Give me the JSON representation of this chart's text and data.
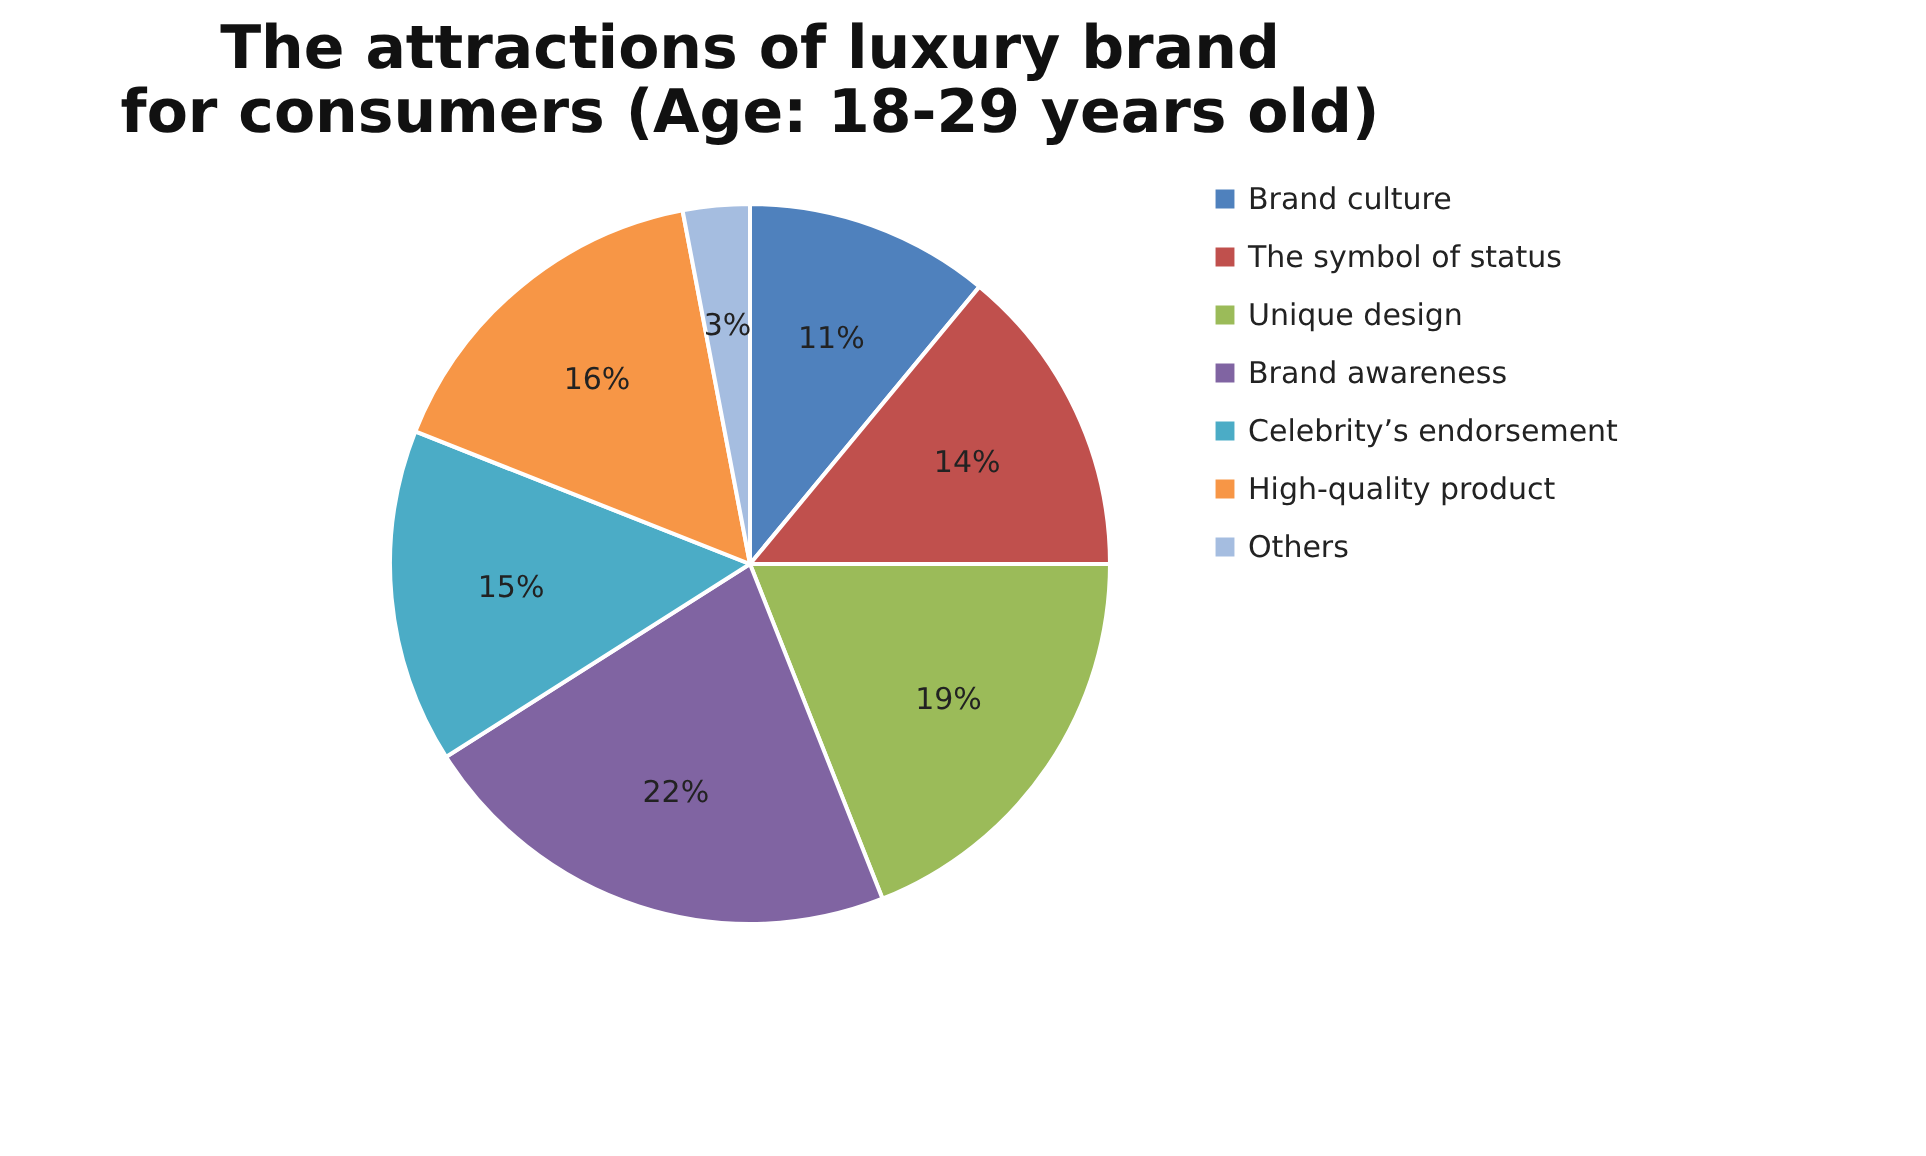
{
  "chart_data": {
    "type": "pie",
    "title": "The attractions of luxury brand for consumers (Age: 18-29 years old)",
    "categories": [
      "Brand culture",
      "The symbol of status",
      "Unique design",
      "Brand awareness",
      "Celebrity’s endorsement",
      "High-quality product",
      "Others"
    ],
    "values": [
      11,
      14,
      19,
      22,
      15,
      16,
      3
    ],
    "colors": [
      "#4f81bd",
      "#c0504d",
      "#9bbb59",
      "#8064a2",
      "#4bacc6",
      "#f79646",
      "#a5bde0"
    ],
    "value_labels": [
      "11%",
      "14%",
      "19%",
      "22%",
      "15%",
      "16%",
      "3%"
    ],
    "legend": "right"
  }
}
